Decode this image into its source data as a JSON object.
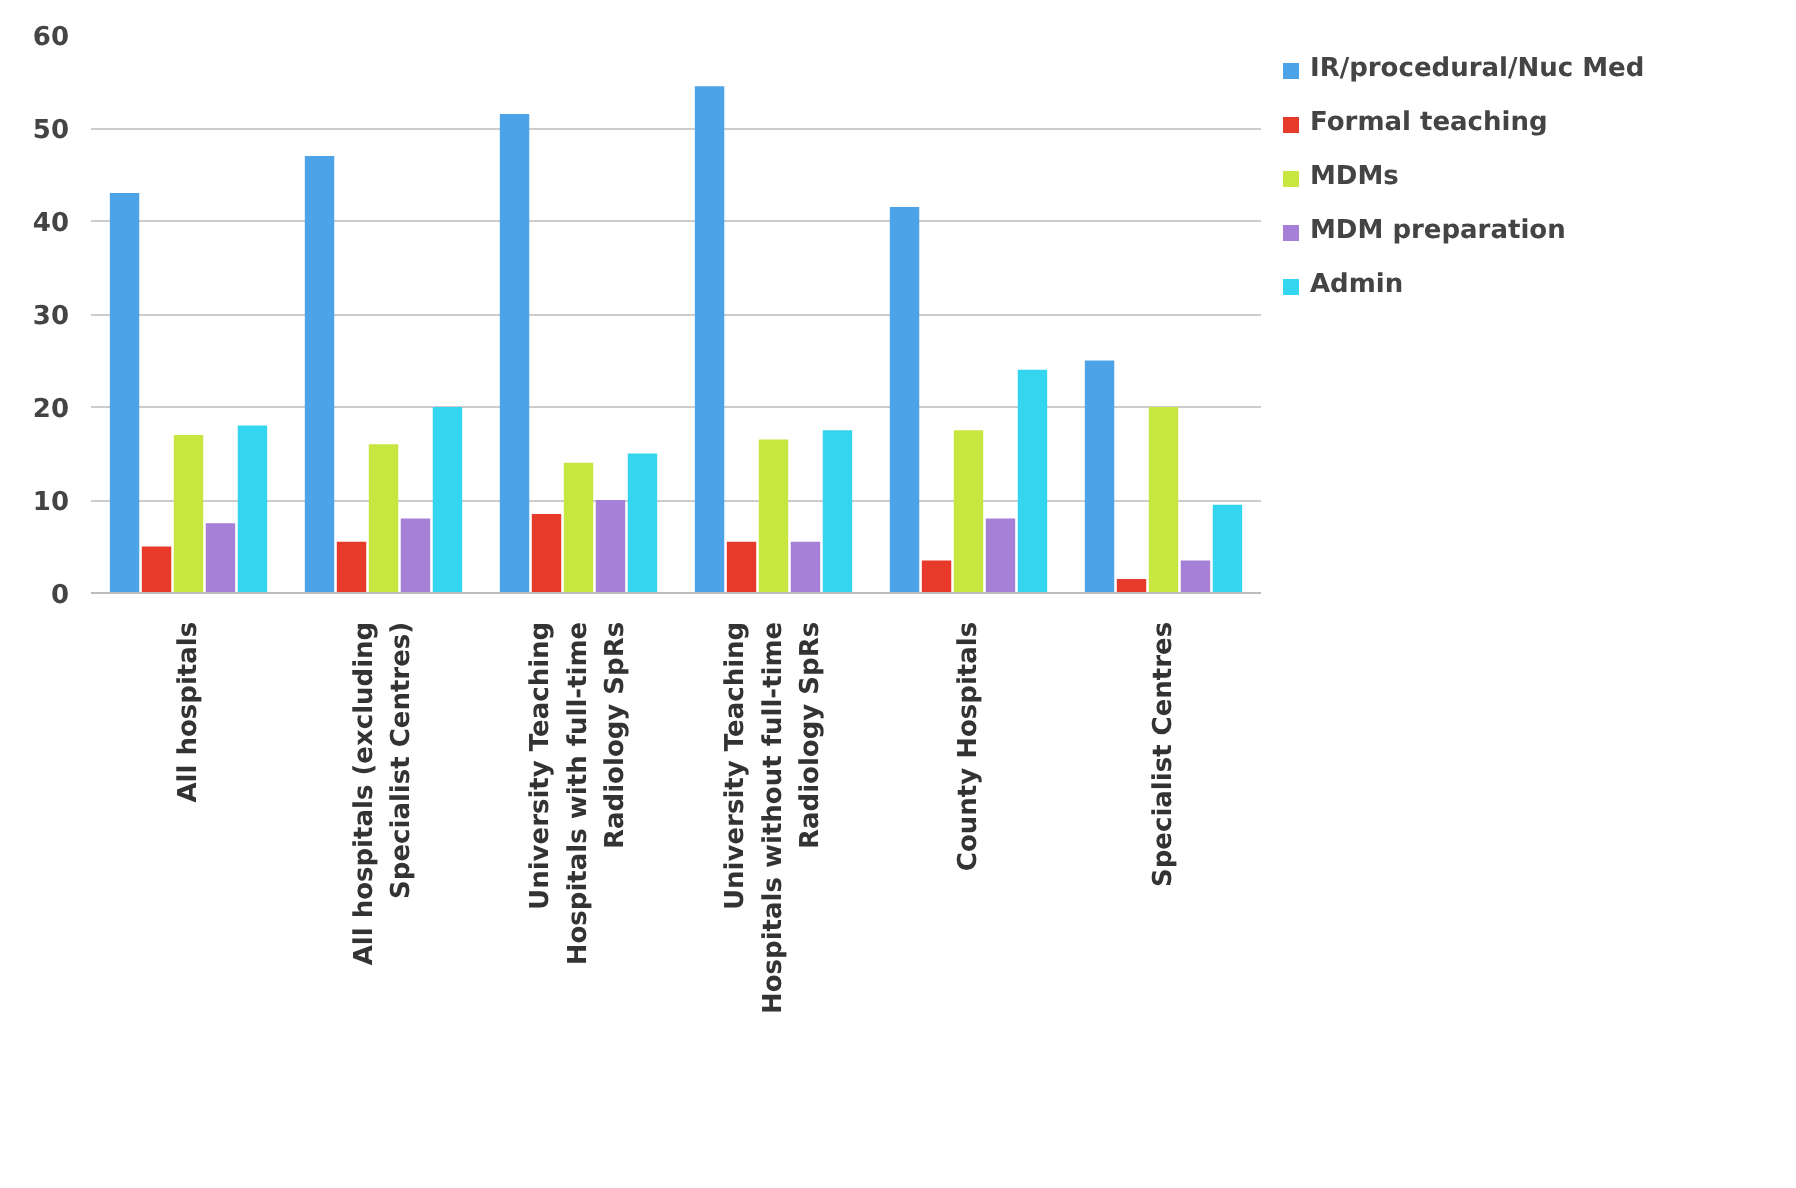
{
  "chart_data": {
    "type": "bar",
    "categories": [
      "All hospitals",
      "All hospitals (excluding Specialist Centres)",
      "University Teaching Hospitals with full-time Radiology SpRs",
      "University Teaching Hospitals without full-time Radiology SpRs",
      "County Hospitals",
      "Specialist Centres"
    ],
    "series": [
      {
        "name": "IR/procedural/Nuc Med",
        "color": "#4da3e8",
        "values": [
          43,
          47,
          51.5,
          54.5,
          41.5,
          25
        ]
      },
      {
        "name": "Formal teaching",
        "color": "#e83a2a",
        "values": [
          5,
          5.5,
          8.5,
          5.5,
          3.5,
          1.5
        ]
      },
      {
        "name": "MDMs",
        "color": "#c8e640",
        "values": [
          17,
          16,
          14,
          16.5,
          17.5,
          20
        ]
      },
      {
        "name": "MDM preparation",
        "color": "#a67fd6",
        "values": [
          7.5,
          8,
          10,
          5.5,
          8,
          3.5
        ]
      },
      {
        "name": "Admin",
        "color": "#33d6ee",
        "values": [
          18,
          20,
          15,
          17.5,
          24,
          9.5
        ]
      }
    ],
    "ylim": [
      0,
      60
    ],
    "yticks": [
      0,
      10,
      20,
      30,
      40,
      50,
      60
    ],
    "grid": "y",
    "legend": "right"
  }
}
